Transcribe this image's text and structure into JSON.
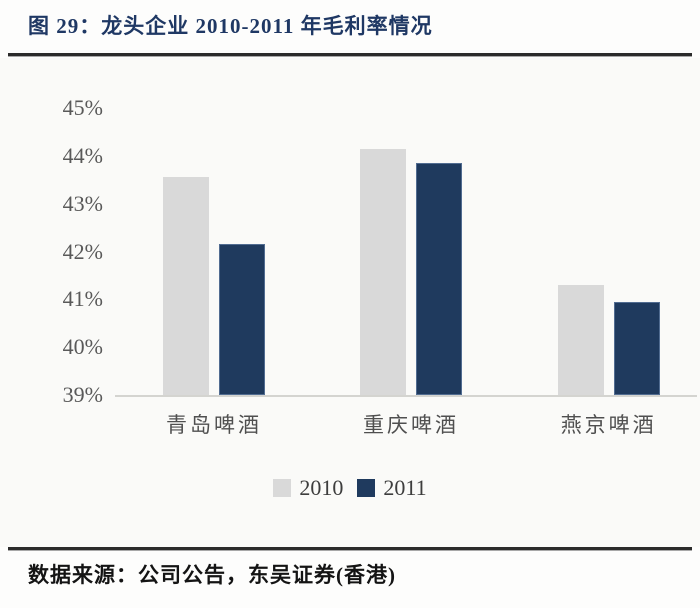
{
  "header": {
    "title": "图 29：龙头企业 2010-2011 年毛利率情况"
  },
  "footer": {
    "source": "数据来源：公司公告，东吴证券(香港)"
  },
  "colors": {
    "title_navy": "#1f3864",
    "bar_2010_gray": "#d9d9d9",
    "bar_2011_navy": "#1f3a5e",
    "axis_text_gray": "#595959",
    "rule_dark": "#2b2b2b"
  },
  "chart_data": {
    "type": "bar",
    "title": "图 29：龙头企业 2010-2011 年毛利率情况",
    "categories": [
      "青岛啤酒",
      "重庆啤酒",
      "燕京啤酒"
    ],
    "series": [
      {
        "name": "2010",
        "color": "#d9d9d9",
        "values": [
          43.55,
          44.15,
          41.3
        ]
      },
      {
        "name": "2011",
        "color": "#1f3a5e",
        "values": [
          42.15,
          43.85,
          40.95
        ]
      }
    ],
    "xlabel": "",
    "ylabel": "",
    "ylim": [
      39,
      45
    ],
    "ytick_values": [
      45,
      44,
      43,
      42,
      41,
      40,
      39
    ],
    "ytick_labels": [
      "45%",
      "44%",
      "43%",
      "42%",
      "41%",
      "40%",
      "39%"
    ],
    "legend_position": "bottom",
    "grid": false
  }
}
